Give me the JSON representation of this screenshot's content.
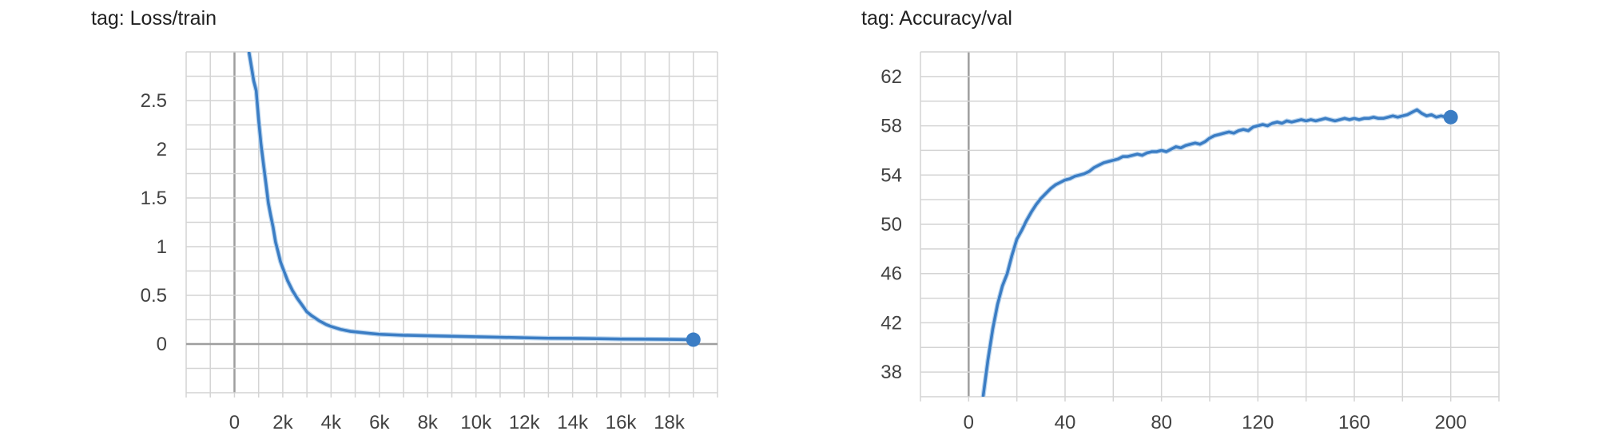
{
  "charts": [
    {
      "title": "tag: Loss/train"
    },
    {
      "title": "tag: Accuracy/val"
    }
  ],
  "colors": {
    "series": "#3b7dc4",
    "smoothed_raw": "#b9d4ee",
    "grid": "#d4d4d4",
    "zero_axis": "#9e9e9e"
  },
  "chart_data": [
    {
      "type": "line",
      "title": "tag: Loss/train",
      "xlabel": "",
      "ylabel": "",
      "xlim": [
        -2000,
        20000
      ],
      "ylim": [
        -0.5,
        3.0
      ],
      "x_ticks": [
        0,
        2000,
        4000,
        6000,
        8000,
        10000,
        12000,
        14000,
        16000,
        18000
      ],
      "x_tick_labels": [
        "0",
        "2k",
        "4k",
        "6k",
        "8k",
        "10k",
        "12k",
        "14k",
        "16k",
        "18k"
      ],
      "y_ticks": [
        0,
        0.5,
        1,
        1.5,
        2,
        2.5
      ],
      "y_tick_labels": [
        "0",
        "0.5",
        "1",
        "1.5",
        "2",
        "2.5"
      ],
      "grid": true,
      "series": [
        {
          "x": [
            600,
            700,
            800,
            900,
            1000,
            1100,
            1200,
            1300,
            1400,
            1500,
            1600,
            1700,
            1800,
            1900,
            2000,
            2200,
            2400,
            2600,
            2800,
            3000,
            3200,
            3500,
            3800,
            4000,
            4400,
            4800,
            5200,
            5600,
            6000,
            6500,
            7000,
            8000,
            9000,
            10000,
            11000,
            12000,
            13000,
            14000,
            15000,
            16000,
            17000,
            18000,
            19000
          ],
          "y": [
            3.0,
            2.85,
            2.7,
            2.6,
            2.3,
            2.05,
            1.85,
            1.65,
            1.45,
            1.32,
            1.2,
            1.05,
            0.95,
            0.85,
            0.78,
            0.65,
            0.55,
            0.47,
            0.4,
            0.33,
            0.29,
            0.24,
            0.2,
            0.18,
            0.15,
            0.13,
            0.12,
            0.11,
            0.1,
            0.095,
            0.09,
            0.085,
            0.08,
            0.075,
            0.07,
            0.065,
            0.06,
            0.058,
            0.055,
            0.052,
            0.05,
            0.048,
            0.045
          ]
        }
      ],
      "endpoint": {
        "x": 19000,
        "y": 0.045
      }
    },
    {
      "type": "line",
      "title": "tag: Accuracy/val",
      "xlabel": "",
      "ylabel": "",
      "xlim": [
        -20,
        220
      ],
      "ylim": [
        36,
        64
      ],
      "x_ticks": [
        0,
        40,
        80,
        120,
        160,
        200
      ],
      "x_tick_labels": [
        "0",
        "40",
        "80",
        "120",
        "160",
        "200"
      ],
      "y_ticks": [
        38,
        42,
        46,
        50,
        54,
        58,
        62
      ],
      "y_tick_labels": [
        "38",
        "42",
        "46",
        "50",
        "54",
        "58",
        "62"
      ],
      "grid": true,
      "series": [
        {
          "x": [
            6,
            8,
            10,
            12,
            14,
            16,
            18,
            20,
            22,
            24,
            26,
            28,
            30,
            32,
            34,
            36,
            38,
            40,
            42,
            44,
            46,
            48,
            50,
            52,
            54,
            56,
            58,
            60,
            62,
            64,
            66,
            68,
            70,
            72,
            74,
            76,
            78,
            80,
            82,
            84,
            86,
            88,
            90,
            92,
            94,
            96,
            98,
            100,
            102,
            104,
            106,
            108,
            110,
            112,
            114,
            116,
            118,
            120,
            122,
            124,
            126,
            128,
            130,
            132,
            134,
            136,
            138,
            140,
            142,
            144,
            146,
            148,
            150,
            152,
            154,
            156,
            158,
            160,
            162,
            164,
            166,
            168,
            170,
            172,
            174,
            176,
            178,
            180,
            182,
            184,
            186,
            188,
            190,
            192,
            194,
            196,
            198,
            200
          ],
          "y": [
            36.0,
            39.0,
            41.5,
            43.5,
            45.0,
            46.0,
            47.5,
            48.8,
            49.5,
            50.3,
            51.0,
            51.6,
            52.1,
            52.5,
            52.9,
            53.2,
            53.4,
            53.6,
            53.7,
            53.9,
            54.0,
            54.1,
            54.3,
            54.6,
            54.8,
            55.0,
            55.1,
            55.2,
            55.3,
            55.5,
            55.5,
            55.6,
            55.7,
            55.6,
            55.8,
            55.9,
            55.9,
            56.0,
            55.9,
            56.1,
            56.3,
            56.2,
            56.4,
            56.5,
            56.6,
            56.5,
            56.7,
            57.0,
            57.2,
            57.3,
            57.4,
            57.5,
            57.4,
            57.6,
            57.7,
            57.6,
            57.9,
            58.0,
            58.1,
            58.0,
            58.2,
            58.3,
            58.2,
            58.4,
            58.3,
            58.4,
            58.5,
            58.4,
            58.5,
            58.4,
            58.5,
            58.6,
            58.5,
            58.4,
            58.5,
            58.6,
            58.5,
            58.6,
            58.5,
            58.6,
            58.6,
            58.7,
            58.6,
            58.6,
            58.7,
            58.8,
            58.7,
            58.8,
            58.9,
            59.1,
            59.3,
            59.0,
            58.8,
            58.9,
            58.7,
            58.8,
            58.7,
            58.7
          ]
        }
      ],
      "endpoint": {
        "x": 200,
        "y": 58.7
      }
    }
  ]
}
